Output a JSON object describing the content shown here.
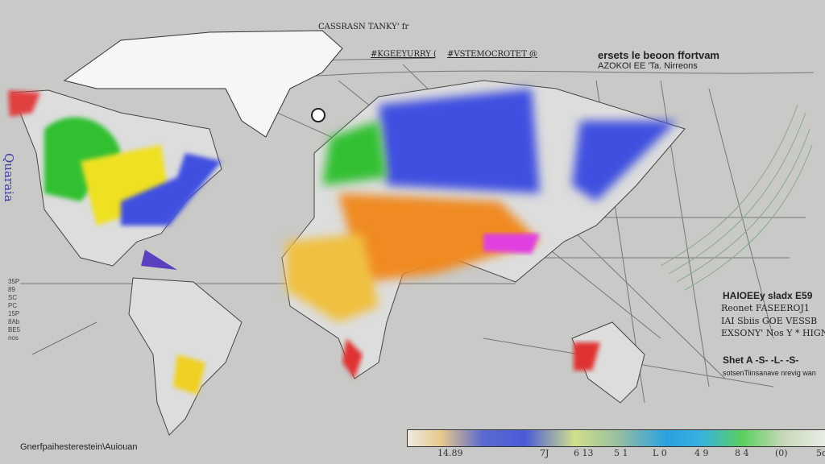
{
  "header": {
    "top_label": "CASSRASN TANKY' fr",
    "sub_label_1": "#KGEEYURRY (",
    "sub_label_2": "#VSTEMOCROTET @",
    "title_line_1": "ersets le beoon ffortvam",
    "title_line_2": "AZOKOI EE 'Ta. Nirreons"
  },
  "left_axis": {
    "vertical_label": "Quaraia",
    "ticks": [
      "35P",
      "89",
      "SC",
      "PC",
      "15P",
      "8Ab",
      "BE5",
      "nos"
    ]
  },
  "info_panel": {
    "heading": "HAIOEEy sladx E59",
    "lines": [
      "Reonet FASEEROJ1",
      "IAI Sbiis GOE VESSB",
      "EXSONY' Nos Y * HIGN,"
    ],
    "subheading": "Shet A  -S-  -L-  -S-",
    "footer": "sotsenTiinsanave nrevig wan"
  },
  "footer_caption": "Gnerfpaihesterestein\\Auiouan",
  "color_scale": {
    "tick_labels": [
      "14.89",
      "7J",
      "6 13",
      "5 1",
      "L 0",
      "4 9",
      "8 4",
      "(0)",
      "5d"
    ],
    "colors": [
      "#ecebe0",
      "#e8c88c",
      "#4a5ad8",
      "#d0e08a",
      "#2aa0e0",
      "#5ad060",
      "#e8ece6"
    ]
  },
  "map_colors": {
    "green": "#30c030",
    "yellow": "#f0e020",
    "orange": "#f08a20",
    "blue": "#4050e0",
    "magenta": "#e040e0",
    "red": "#e03030"
  }
}
